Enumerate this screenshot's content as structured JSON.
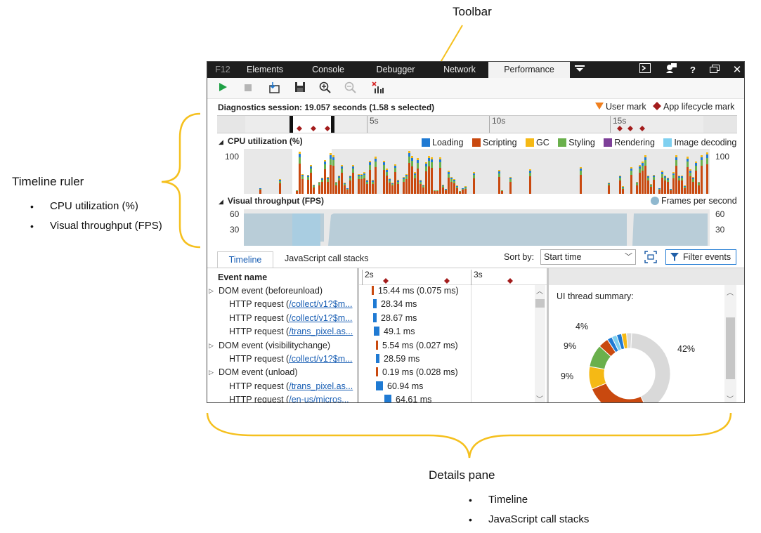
{
  "annotations": {
    "toolbar_label": "Toolbar",
    "ruler_label": "Timeline ruler",
    "ruler_items": [
      "CPU utilization (%)",
      "Visual throughput (FPS)"
    ],
    "details_label": "Details pane",
    "details_items": [
      "Timeline",
      "JavaScript call stacks"
    ],
    "callout_color": "#f5c01e"
  },
  "tabs": [
    "F12",
    "Elements",
    "Console",
    "Debugger",
    "Network",
    "Performance"
  ],
  "active_tab": "Performance",
  "window_icons": [
    "overflow-icon",
    "console-icon",
    "feedback-icon",
    "help-icon",
    "undock-icon",
    "close-icon"
  ],
  "toolbar_icons": [
    "start-icon",
    "stop-icon",
    "import-icon",
    "save-icon",
    "zoom-in-icon",
    "zoom-out-icon",
    "clear-selection-icon"
  ],
  "session": {
    "text": "Diagnostics session: 19.057 seconds (1.58 s selected)",
    "user_mark": "User mark",
    "lifecycle_mark": "App lifecycle mark",
    "ticks": [
      "5s",
      "10s",
      "15s"
    ]
  },
  "cpu": {
    "title": "CPU utilization (%)",
    "max_left": "100",
    "max_right": "100",
    "legend": [
      {
        "name": "Loading",
        "color": "#1f7ad3"
      },
      {
        "name": "Scripting",
        "color": "#c9490f"
      },
      {
        "name": "GC",
        "color": "#f5b915"
      },
      {
        "name": "Styling",
        "color": "#6ab04c"
      },
      {
        "name": "Rendering",
        "color": "#7d3f98"
      },
      {
        "name": "Image decoding",
        "color": "#7fd0f0"
      }
    ]
  },
  "fps": {
    "title": "Visual throughput (FPS)",
    "legend": "Frames per second",
    "legend_color": "#8fb8cf",
    "ticks_left": [
      "60",
      "30"
    ],
    "ticks_right": [
      "60",
      "30"
    ]
  },
  "details": {
    "tabs": [
      "Timeline",
      "JavaScript call stacks"
    ],
    "sort_label": "Sort by:",
    "sort_value": "Start time",
    "filter_label": "Filter events",
    "column_header": "Event name",
    "ruler_ticks": [
      "2s",
      "3s"
    ],
    "events": [
      {
        "expand": true,
        "name": "DOM event (beforeunload)",
        "link": "",
        "duration": "15.44 ms (0.075 ms)",
        "color": "#c9490f",
        "bar": 3,
        "offset": 18
      },
      {
        "expand": false,
        "name": "HTTP request (",
        "link": "/collect/v1?$m...",
        "duration": "28.34 ms",
        "color": "#1f7ad3",
        "bar": 5,
        "offset": 20
      },
      {
        "expand": false,
        "name": "HTTP request (",
        "link": "/collect/v1?$m...",
        "duration": "28.67 ms",
        "color": "#1f7ad3",
        "bar": 5,
        "offset": 20
      },
      {
        "expand": false,
        "name": "HTTP request (",
        "link": "/trans_pixel.as...",
        "duration": "49.1 ms",
        "color": "#1f7ad3",
        "bar": 8,
        "offset": 21
      },
      {
        "expand": true,
        "name": "DOM event (visibilitychange)",
        "link": "",
        "duration": "5.54 ms (0.027 ms)",
        "color": "#c9490f",
        "bar": 3,
        "offset": 24
      },
      {
        "expand": false,
        "name": "HTTP request (",
        "link": "/collect/v1?$m...",
        "duration": "28.59 ms",
        "color": "#1f7ad3",
        "bar": 5,
        "offset": 24
      },
      {
        "expand": true,
        "name": "DOM event (unload)",
        "link": "",
        "duration": "0.19 ms (0.028 ms)",
        "color": "#c9490f",
        "bar": 3,
        "offset": 24
      },
      {
        "expand": false,
        "name": "HTTP request (",
        "link": "/trans_pixel.as...",
        "duration": "60.94 ms",
        "color": "#1f7ad3",
        "bar": 10,
        "offset": 24
      },
      {
        "expand": false,
        "name": "HTTP request (",
        "link": "/en-us/micros...",
        "duration": "64.61 ms",
        "color": "#1f7ad3",
        "bar": 10,
        "offset": 36
      }
    ],
    "summary_title": "UI thread summary:",
    "summary_labels": [
      {
        "text": "4%"
      },
      {
        "text": "9%"
      },
      {
        "text": "9%"
      },
      {
        "text": "42%"
      }
    ],
    "summary_slices": [
      {
        "value": 42,
        "color": "#d9d9d9"
      },
      {
        "value": 26,
        "color": "#c9490f"
      },
      {
        "value": 9,
        "color": "#f5b915"
      },
      {
        "value": 9,
        "color": "#6ab04c"
      },
      {
        "value": 4,
        "color": "#c9490f"
      },
      {
        "value": 2,
        "color": "#1f7ad3"
      },
      {
        "value": 2,
        "color": "#7fd0f0"
      },
      {
        "value": 2,
        "color": "#1f7ad3"
      },
      {
        "value": 2,
        "color": "#f5b915"
      },
      {
        "value": 2,
        "color": "#d9d9d9"
      }
    ]
  }
}
